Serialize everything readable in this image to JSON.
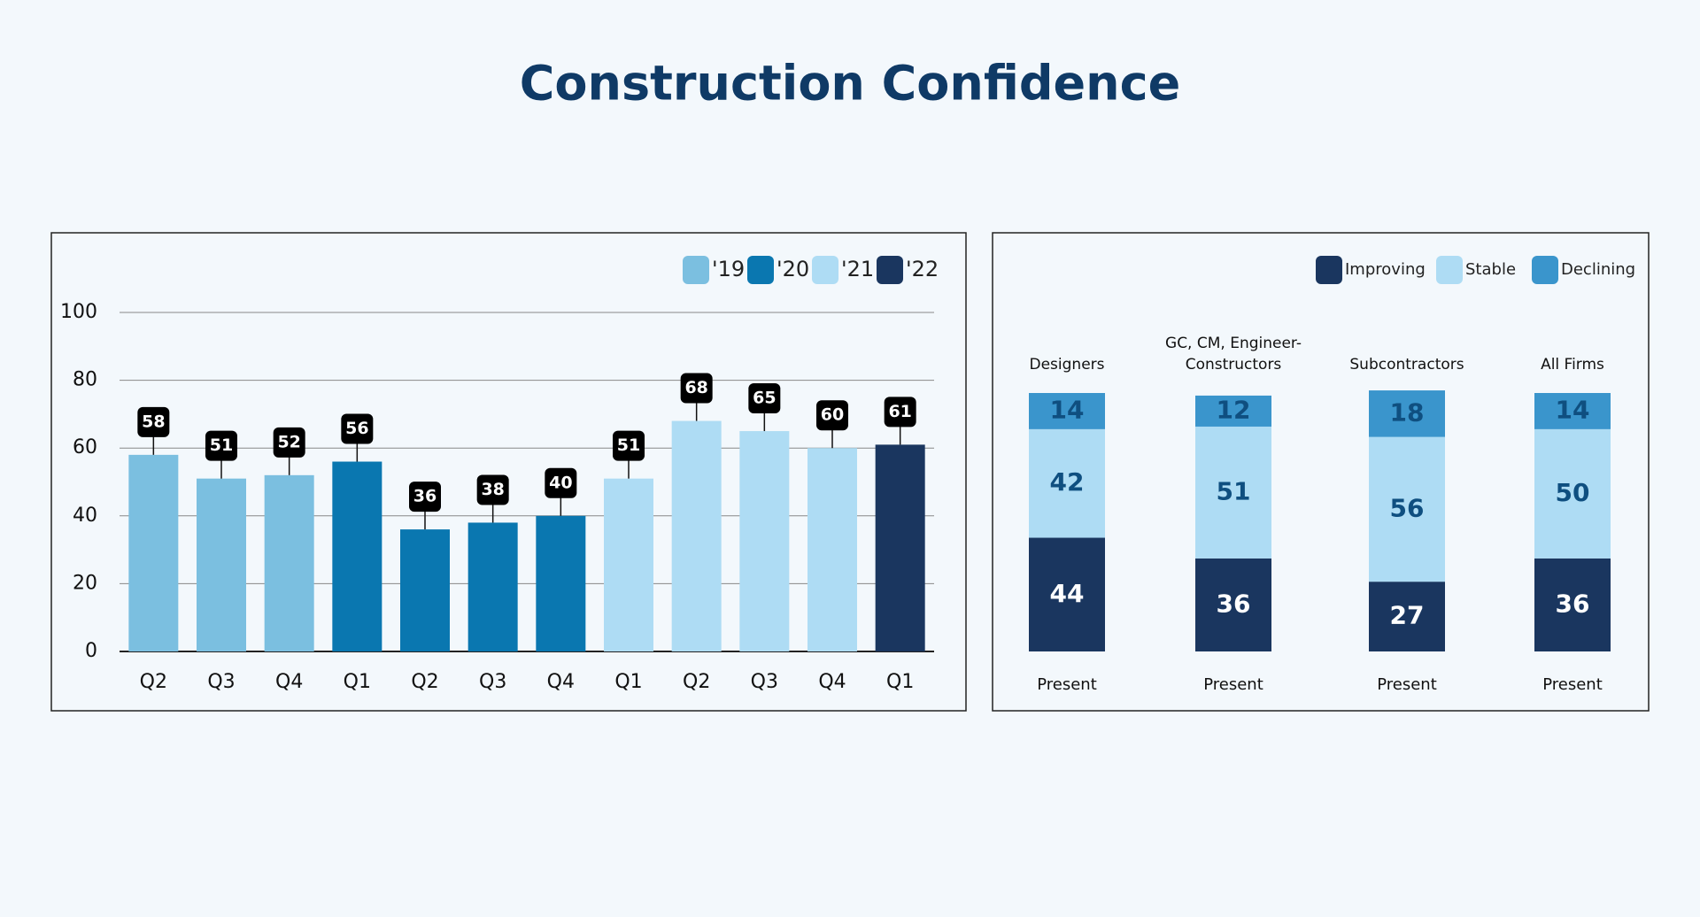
{
  "chart_data": [
    {
      "type": "bar",
      "title": "Construction Confidence",
      "categories": [
        "Q2",
        "Q3",
        "Q4",
        "Q1",
        "Q2",
        "Q3",
        "Q4",
        "Q1",
        "Q2",
        "Q3",
        "Q4",
        "Q1"
      ],
      "series": [
        {
          "name": "'19",
          "color": "#7bbfe0",
          "values": [
            58,
            51,
            52,
            null,
            null,
            null,
            null,
            null,
            null,
            null,
            null,
            null
          ]
        },
        {
          "name": "'20",
          "color": "#0a77b0",
          "values": [
            null,
            null,
            null,
            56,
            36,
            38,
            40,
            null,
            null,
            null,
            null,
            null
          ]
        },
        {
          "name": "'21",
          "color": "#aedcf4",
          "values": [
            null,
            null,
            null,
            null,
            null,
            null,
            null,
            51,
            68,
            65,
            60,
            null
          ]
        },
        {
          "name": "'22",
          "color": "#1a365f",
          "values": [
            null,
            null,
            null,
            null,
            null,
            null,
            null,
            null,
            null,
            null,
            null,
            61
          ]
        }
      ],
      "ylim": [
        0,
        100
      ],
      "yticks": [
        0,
        20,
        40,
        60,
        80,
        100
      ],
      "grid": true,
      "legend": "top-right"
    },
    {
      "type": "stacked_bar",
      "categories": [
        "Designers",
        "GC, CM, Engineer-Constructors",
        "Subcontractors",
        "All Firms"
      ],
      "sublabels": [
        "Present",
        "Present",
        "Present",
        "Present"
      ],
      "series": [
        {
          "name": "Improving",
          "color": "#1a365f",
          "values": [
            44,
            36,
            27,
            36
          ]
        },
        {
          "name": "Stable",
          "color": "#aedcf4",
          "values": [
            42,
            51,
            56,
            50
          ]
        },
        {
          "name": "Declining",
          "color": "#3a95cc",
          "values": [
            14,
            12,
            18,
            14
          ]
        }
      ],
      "ylim": [
        0,
        100
      ],
      "legend": "top-right"
    }
  ]
}
